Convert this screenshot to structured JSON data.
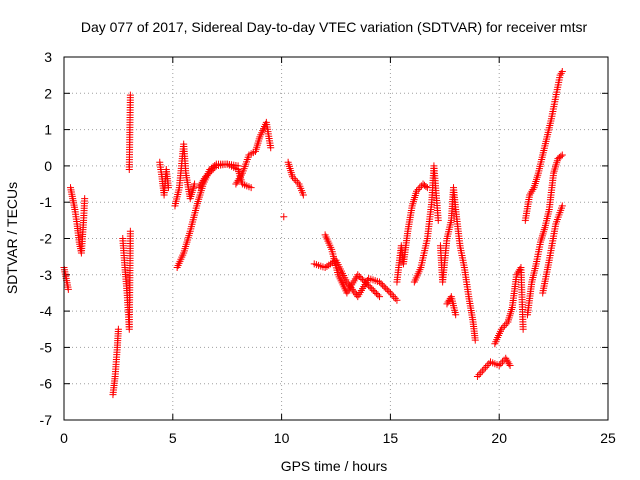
{
  "chart_data": {
    "type": "scatter",
    "title": "Day 077 of 2017, Sidereal Day-to-day VTEC variation (SDTVAR) for receiver mtsr",
    "xlabel": "GPS time / hours",
    "ylabel": "SDTVAR / TECUs",
    "xlim": [
      0,
      25
    ],
    "ylim": [
      -7,
      3
    ],
    "xticks": [
      0,
      5,
      10,
      15,
      20,
      25
    ],
    "yticks": [
      -7,
      -6,
      -5,
      -4,
      -3,
      -2,
      -1,
      0,
      1,
      2,
      3
    ],
    "grid": true,
    "marker": "+",
    "color": "#ff0000",
    "series": [
      {
        "name": "SDTVAR",
        "segments": [
          [
            [
              0.0,
              -2.8
            ],
            [
              0.1,
              -3.1
            ],
            [
              0.2,
              -3.4
            ]
          ],
          [
            [
              0.3,
              -0.6
            ],
            [
              0.4,
              -0.9
            ],
            [
              0.5,
              -1.2
            ],
            [
              0.6,
              -1.6
            ],
            [
              0.7,
              -2.1
            ],
            [
              0.8,
              -2.4
            ],
            [
              0.9,
              -1.5
            ],
            [
              0.95,
              -0.9
            ]
          ],
          [
            [
              2.25,
              -6.3
            ],
            [
              2.35,
              -5.8
            ],
            [
              2.45,
              -5.0
            ],
            [
              2.5,
              -4.5
            ]
          ],
          [
            [
              2.7,
              -2.0
            ],
            [
              2.8,
              -2.8
            ],
            [
              2.9,
              -3.5
            ],
            [
              3.0,
              -4.5
            ],
            [
              3.05,
              -1.8
            ]
          ],
          [
            [
              3.0,
              -0.1
            ],
            [
              3.05,
              1.95
            ]
          ],
          [
            [
              4.4,
              0.1
            ],
            [
              4.5,
              -0.3
            ],
            [
              4.6,
              -0.8
            ],
            [
              4.7,
              -0.1
            ],
            [
              4.8,
              -0.6
            ]
          ],
          [
            [
              5.1,
              -1.1
            ],
            [
              5.3,
              -0.6
            ],
            [
              5.5,
              0.6
            ],
            [
              5.6,
              -0.2
            ],
            [
              5.8,
              -0.9
            ],
            [
              6.0,
              -0.5
            ]
          ],
          [
            [
              5.2,
              -2.8
            ],
            [
              5.5,
              -2.4
            ],
            [
              5.8,
              -1.8
            ],
            [
              6.1,
              -1.1
            ],
            [
              6.4,
              -0.5
            ],
            [
              6.7,
              -0.1
            ],
            [
              7.0,
              0.05
            ],
            [
              7.5,
              0.05
            ],
            [
              8.0,
              0.0
            ]
          ],
          [
            [
              6.2,
              -0.6
            ],
            [
              6.5,
              -0.3
            ],
            [
              7.0,
              0.0
            ],
            [
              7.5,
              0.05
            ],
            [
              8.0,
              -0.1
            ],
            [
              8.2,
              -0.5
            ],
            [
              8.6,
              -0.6
            ]
          ],
          [
            [
              7.9,
              -0.5
            ],
            [
              8.2,
              -0.2
            ],
            [
              8.5,
              0.3
            ],
            [
              8.8,
              0.4
            ],
            [
              9.0,
              0.8
            ],
            [
              9.3,
              1.2
            ],
            [
              9.5,
              0.5
            ]
          ],
          [
            [
              10.1,
              -1.4
            ]
          ],
          [
            [
              10.3,
              0.1
            ],
            [
              10.5,
              -0.3
            ],
            [
              10.8,
              -0.5
            ],
            [
              11.0,
              -0.8
            ]
          ],
          [
            [
              11.5,
              -2.7
            ],
            [
              12.0,
              -2.8
            ],
            [
              12.5,
              -2.6
            ],
            [
              13.0,
              -3.2
            ],
            [
              13.5,
              -3.6
            ],
            [
              14.0,
              -3.1
            ],
            [
              14.5,
              -3.2
            ],
            [
              15.0,
              -3.5
            ],
            [
              15.3,
              -3.7
            ]
          ],
          [
            [
              12.0,
              -1.9
            ],
            [
              12.3,
              -2.3
            ],
            [
              12.6,
              -3.0
            ],
            [
              13.0,
              -3.5
            ],
            [
              13.5,
              -3.0
            ],
            [
              14.0,
              -3.3
            ],
            [
              14.5,
              -3.6
            ]
          ],
          [
            [
              15.3,
              -3.2
            ],
            [
              15.5,
              -2.2
            ],
            [
              15.6,
              -2.7
            ],
            [
              15.8,
              -1.8
            ],
            [
              16.0,
              -1.1
            ],
            [
              16.2,
              -0.7
            ],
            [
              16.5,
              -0.5
            ],
            [
              16.7,
              -0.6
            ]
          ],
          [
            [
              16.1,
              -3.2
            ],
            [
              16.4,
              -2.8
            ],
            [
              16.7,
              -2.0
            ],
            [
              16.9,
              -1.0
            ],
            [
              17.0,
              0.0
            ],
            [
              17.2,
              -1.5
            ]
          ],
          [
            [
              17.3,
              -2.2
            ],
            [
              17.4,
              -3.2
            ],
            [
              17.6,
              -2.0
            ],
            [
              17.8,
              -1.5
            ],
            [
              17.9,
              -0.6
            ],
            [
              18.0,
              -1.2
            ],
            [
              18.2,
              -2.2
            ],
            [
              18.4,
              -2.8
            ],
            [
              18.6,
              -3.6
            ],
            [
              18.8,
              -4.3
            ],
            [
              18.9,
              -4.8
            ]
          ],
          [
            [
              17.6,
              -3.8
            ],
            [
              17.8,
              -3.6
            ],
            [
              18.0,
              -4.1
            ]
          ],
          [
            [
              19.0,
              -5.8
            ],
            [
              19.3,
              -5.6
            ],
            [
              19.6,
              -5.4
            ],
            [
              20.0,
              -5.5
            ],
            [
              20.3,
              -5.3
            ],
            [
              20.5,
              -5.5
            ]
          ],
          [
            [
              19.8,
              -4.9
            ],
            [
              20.1,
              -4.5
            ],
            [
              20.4,
              -4.3
            ],
            [
              20.6,
              -3.9
            ],
            [
              20.8,
              -3.0
            ],
            [
              21.0,
              -2.8
            ],
            [
              21.1,
              -4.5
            ]
          ],
          [
            [
              21.2,
              -1.5
            ],
            [
              21.4,
              -0.8
            ],
            [
              21.6,
              -0.6
            ],
            [
              21.8,
              -0.2
            ],
            [
              22.0,
              0.3
            ],
            [
              22.2,
              0.8
            ],
            [
              22.4,
              1.3
            ],
            [
              22.6,
              1.9
            ],
            [
              22.8,
              2.5
            ],
            [
              22.9,
              2.6
            ]
          ],
          [
            [
              21.3,
              -4.1
            ],
            [
              21.5,
              -3.2
            ],
            [
              21.7,
              -2.7
            ],
            [
              21.9,
              -2.1
            ],
            [
              22.1,
              -1.7
            ],
            [
              22.3,
              -1.2
            ],
            [
              22.5,
              -0.2
            ],
            [
              22.7,
              0.2
            ],
            [
              22.9,
              0.3
            ]
          ],
          [
            [
              22.0,
              -3.5
            ],
            [
              22.3,
              -2.6
            ],
            [
              22.6,
              -1.6
            ],
            [
              22.9,
              -1.1
            ]
          ]
        ]
      }
    ]
  }
}
